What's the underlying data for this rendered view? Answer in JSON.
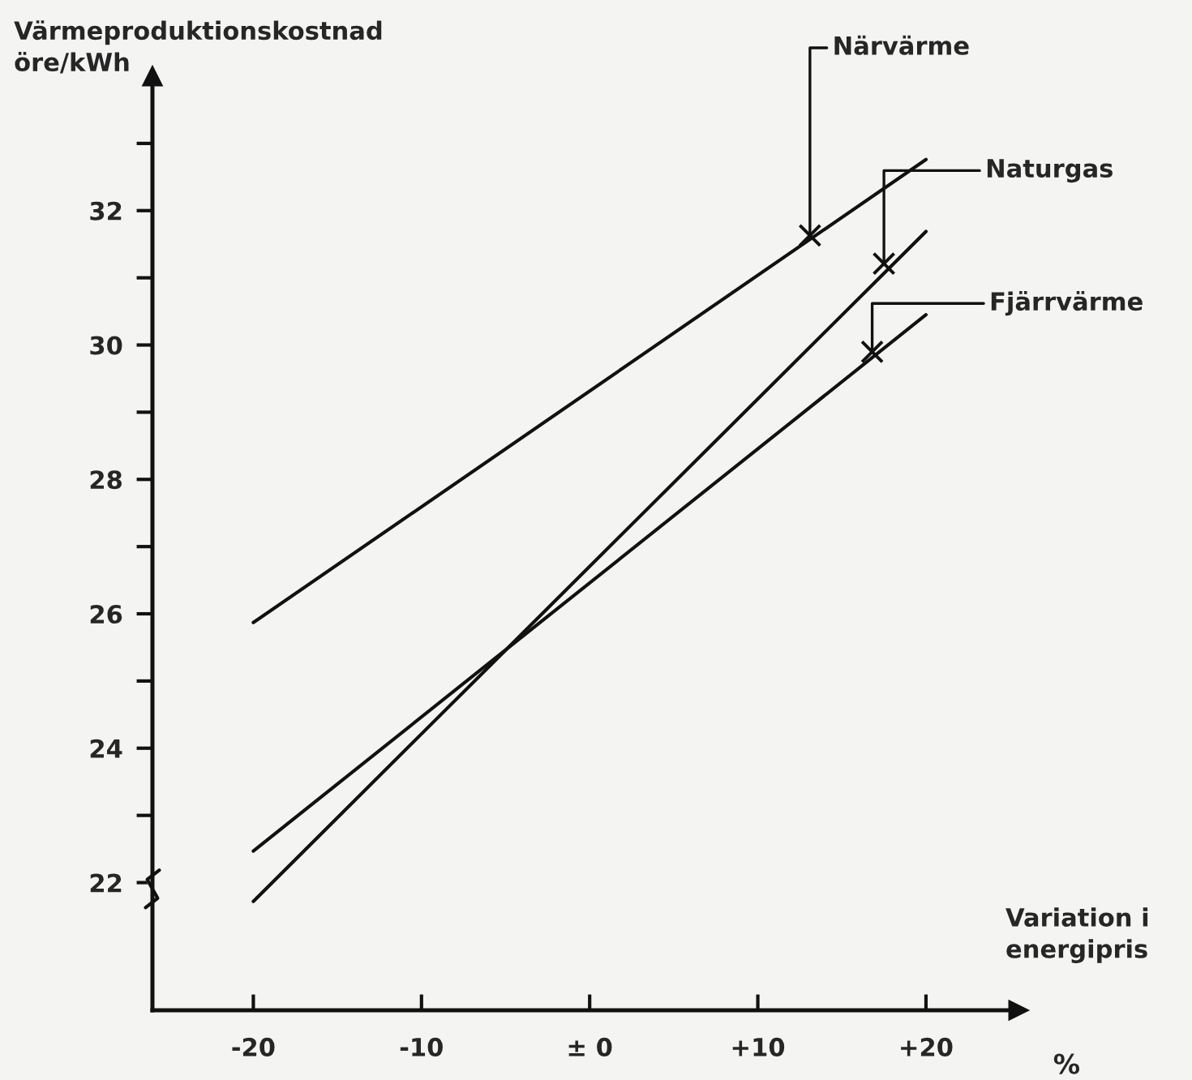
{
  "chart_data": {
    "type": "line",
    "xlabel": "Variation i\nenergipris",
    "ylabel": "Värmeproduktionskostnad\nöre/kWh",
    "x": [
      -20,
      20
    ],
    "series": [
      {
        "color": "#111111",
        "values": [
          25.87,
          32.76
        ]
      },
      {
        "color": "#111111",
        "values": [
          21.72,
          31.69
        ]
      },
      {
        "color": "#111111",
        "values": [
          22.47,
          30.45
        ]
      }
    ],
    "xlim": [
      -26,
      25.5
    ],
    "ylim": [
      20.1,
      34
    ],
    "xticks": [
      {
        "value": -20,
        "label": "-20"
      },
      {
        "value": -10,
        "label": "-10"
      },
      {
        "value": 0,
        "label": "± 0"
      },
      {
        "value": 10,
        "label": "+10"
      },
      {
        "value": 20,
        "label": "+20"
      }
    ],
    "yticks": [
      22,
      {
        "value": 23,
        "label": null
      },
      24,
      {
        "value": 25,
        "label": null
      },
      26,
      {
        "value": 27,
        "label": null
      },
      28,
      {
        "value": 29,
        "label": null
      },
      30,
      {
        "value": 31,
        "label": null
      },
      32,
      {
        "value": 33,
        "label": null
      }
    ],
    "annotations": [
      {
        "text": "Närvärme",
        "x": 13.1,
        "y": 31.63
      },
      {
        "text": "Naturgas",
        "x": 17.5,
        "y": 31.21
      },
      {
        "text": "Fjärrvärme",
        "x": 16.8,
        "y": 29.9
      },
      "%"
    ],
    "grid": false,
    "line_style": "solid",
    "marker": "none"
  }
}
